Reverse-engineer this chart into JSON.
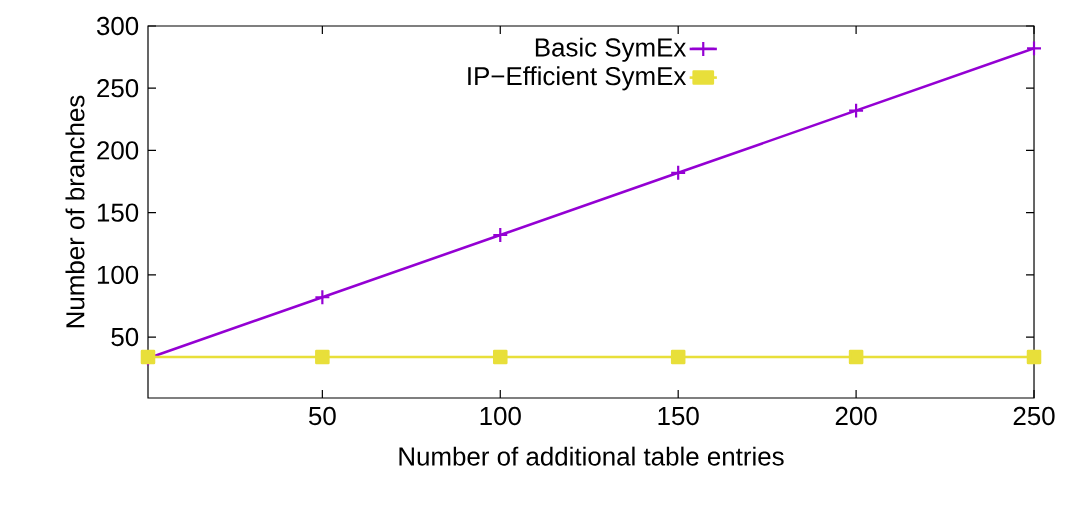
{
  "chart_data": {
    "type": "line",
    "xlabel": "Number of additional table entries",
    "ylabel": "Number of branches",
    "x": [
      1,
      50,
      100,
      150,
      200,
      250
    ],
    "series": [
      {
        "name": "Basic SymEx",
        "color": "#9400d3",
        "marker": "cross",
        "values": [
          33,
          82,
          132,
          182,
          232,
          282
        ]
      },
      {
        "name": "IP−Efficient SymEx",
        "color": "#e8df3a",
        "marker": "square",
        "values": [
          34,
          34,
          34,
          34,
          34,
          34
        ]
      }
    ],
    "xlim": [
      1,
      250
    ],
    "ylim": [
      1,
      300
    ],
    "xticks": [
      50,
      100,
      150,
      200,
      250
    ],
    "yticks": [
      50,
      100,
      150,
      200,
      250,
      300
    ],
    "grid": false,
    "legend": "top",
    "line_style": "solid"
  }
}
